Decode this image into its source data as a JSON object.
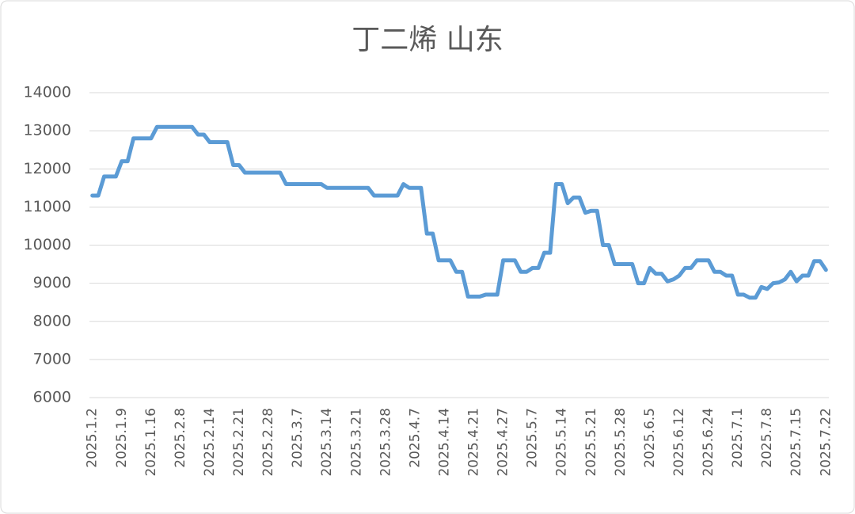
{
  "chart_data": {
    "type": "line",
    "title": "丁二烯 山东",
    "categories": [
      "2025.1.2",
      null,
      null,
      null,
      null,
      "2025.1.9",
      null,
      null,
      null,
      null,
      "2025.1.16",
      null,
      null,
      null,
      null,
      "2025.2.8",
      null,
      null,
      null,
      null,
      "2025.2.14",
      null,
      null,
      null,
      null,
      "2025.2.21",
      null,
      null,
      null,
      null,
      "2025.2.28",
      null,
      null,
      null,
      null,
      "2025.3.7",
      null,
      null,
      null,
      null,
      "2025.3.14",
      null,
      null,
      null,
      null,
      "2025.3.21",
      null,
      null,
      null,
      null,
      "2025.3.28",
      null,
      null,
      null,
      null,
      "2025.4.7",
      null,
      null,
      null,
      null,
      "2025.4.14",
      null,
      null,
      null,
      null,
      "2025.4.21",
      null,
      null,
      null,
      null,
      "2025.4.27",
      null,
      null,
      null,
      null,
      "2025.5.7",
      null,
      null,
      null,
      null,
      "2025.5.14",
      null,
      null,
      null,
      null,
      "2025.5.21",
      null,
      null,
      null,
      null,
      "2025.5.28",
      null,
      null,
      null,
      null,
      "2025.6.5",
      null,
      null,
      null,
      null,
      "2025.6.12",
      null,
      null,
      null,
      null,
      "2025.6.24",
      null,
      null,
      null,
      null,
      "2025.7.1",
      null,
      null,
      null,
      null,
      "2025.7.8",
      null,
      null,
      null,
      null,
      "2025.7.15",
      null,
      null,
      null,
      null,
      "2025.7.22"
    ],
    "values": [
      11300,
      11300,
      11800,
      11800,
      11800,
      12200,
      12200,
      12800,
      12800,
      12800,
      12800,
      13100,
      13100,
      13100,
      13100,
      13100,
      13100,
      13100,
      12900,
      12900,
      12700,
      12700,
      12700,
      12700,
      12100,
      12100,
      11900,
      11900,
      11900,
      11900,
      11900,
      11900,
      11900,
      11600,
      11600,
      11600,
      11600,
      11600,
      11600,
      11600,
      11500,
      11500,
      11500,
      11500,
      11500,
      11500,
      11500,
      11500,
      11300,
      11300,
      11300,
      11300,
      11300,
      11600,
      11500,
      11500,
      11500,
      10300,
      10300,
      9600,
      9600,
      9600,
      9300,
      9300,
      8650,
      8650,
      8650,
      8700,
      8700,
      8700,
      9600,
      9600,
      9600,
      9300,
      9300,
      9400,
      9400,
      9800,
      9800,
      11600,
      11600,
      11100,
      11250,
      11250,
      10850,
      10900,
      10900,
      10000,
      10000,
      9500,
      9500,
      9500,
      9500,
      9000,
      9000,
      9400,
      9250,
      9250,
      9050,
      9100,
      9200,
      9400,
      9400,
      9600,
      9600,
      9600,
      9300,
      9300,
      9200,
      9200,
      8700,
      8700,
      8620,
      8620,
      8900,
      8850,
      9000,
      9020,
      9100,
      9300,
      9050,
      9200,
      9200,
      9580,
      9580,
      9350
    ],
    "color": "#5b9bd5",
    "ylim": [
      6000,
      14000
    ],
    "yticks": [
      6000,
      7000,
      8000,
      9000,
      10000,
      11000,
      12000,
      13000,
      14000
    ],
    "grid": true
  }
}
